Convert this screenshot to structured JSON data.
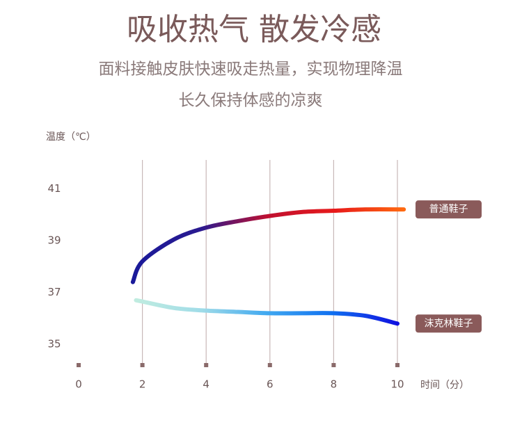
{
  "chart_data": {
    "type": "line",
    "title": "吸收热气 散发冷感",
    "subtitle": [
      "面料接触皮肤快速吸走热量，实现物理降温",
      "长久保持体感的凉爽"
    ],
    "y_label": "温度（℃）",
    "x_label": "时间（分）",
    "xlim": [
      0,
      10
    ],
    "xticks": [
      0,
      2,
      4,
      6,
      8,
      10
    ],
    "ylim": [
      34.2,
      42
    ],
    "yticks": [
      35,
      37,
      39,
      41
    ],
    "grid": "x",
    "series": [
      {
        "name": "普通鞋子",
        "gradient": [
          "#1a1a9a",
          "#2a1a90",
          "#c01030",
          "#e81a1a",
          "#ff6a10"
        ],
        "x": [
          1.7,
          2,
          3,
          4,
          5,
          6,
          7,
          8,
          9,
          10.2
        ],
        "values": [
          37.4,
          38.2,
          39.05,
          39.5,
          39.75,
          39.95,
          40.1,
          40.15,
          40.2,
          40.2
        ]
      },
      {
        "name": "沫克林鞋子",
        "gradient": [
          "#c0ece0",
          "#a0dce8",
          "#40a8f0",
          "#1070f0",
          "#1010e0"
        ],
        "x": [
          1.8,
          2,
          3,
          4,
          5,
          6,
          7,
          8,
          9,
          10
        ],
        "values": [
          36.7,
          36.65,
          36.4,
          36.3,
          36.25,
          36.2,
          36.2,
          36.2,
          36.1,
          35.8
        ]
      }
    ]
  }
}
